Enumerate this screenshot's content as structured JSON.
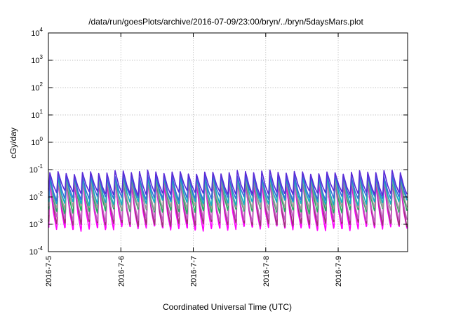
{
  "chart_data": {
    "type": "line",
    "title": "/data/run/goesPlots/archive/2016-07-09/23:00/bryn/../bryn/5daysMars.plot",
    "xlabel": "Coordinated Universal Time (UTC)",
    "ylabel": "cGy/day",
    "y_scale": "log",
    "ylim": [
      0.0001,
      10000
    ],
    "y_ticks": [
      {
        "base": "10",
        "exp": "-4",
        "value": 0.0001
      },
      {
        "base": "10",
        "exp": "-3",
        "value": 0.001
      },
      {
        "base": "10",
        "exp": "-2",
        "value": 0.01
      },
      {
        "base": "10",
        "exp": "-1",
        "value": 0.1
      },
      {
        "base": "10",
        "exp": "0",
        "value": 1
      },
      {
        "base": "10",
        "exp": "1",
        "value": 10
      },
      {
        "base": "10",
        "exp": "2",
        "value": 100
      },
      {
        "base": "10",
        "exp": "3",
        "value": 1000
      },
      {
        "base": "10",
        "exp": "4",
        "value": 10000
      }
    ],
    "xlim": [
      "2016-07-05 00:00",
      "2016-07-09 23:00"
    ],
    "x_ticks": [
      "2016-7-5",
      "2016-7-6",
      "2016-7-7",
      "2016-7-8",
      "2016-7-9"
    ],
    "grid": true,
    "pattern": {
      "cycle_hours": 2.7,
      "cycles": 44
    },
    "series": [
      {
        "color": "#ff00ff",
        "peak": 0.035,
        "trough": 0.0007
      },
      {
        "color": "#a0307a",
        "peak": 0.045,
        "trough": 0.001
      },
      {
        "color": "#c060c0",
        "peak": 0.04,
        "trough": 0.0015
      },
      {
        "color": "#1fb05a",
        "peak": 0.05,
        "trough": 0.003
      },
      {
        "color": "#9a9a9a",
        "peak": 0.048,
        "trough": 0.004
      },
      {
        "color": "#10b0c0",
        "peak": 0.055,
        "trough": 0.006
      },
      {
        "color": "#3a6ad8",
        "peak": 0.06,
        "trough": 0.009
      },
      {
        "color": "#5a2ad8",
        "peak": 0.08,
        "trough": 0.014
      }
    ]
  }
}
